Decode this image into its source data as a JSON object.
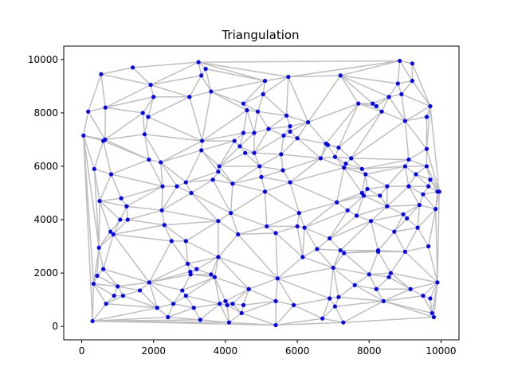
{
  "chart_data": {
    "type": "scatter",
    "title": "Triangulation",
    "xlabel": "",
    "ylabel": "",
    "xlim": [
      -500,
      10500
    ],
    "ylim": [
      -500,
      10500
    ],
    "xticks": [
      0,
      2000,
      4000,
      6000,
      8000,
      10000
    ],
    "yticks": [
      0,
      2000,
      4000,
      6000,
      8000,
      10000
    ],
    "grid": false,
    "legend": "none",
    "colors": {
      "points": "#0000ff",
      "edges": "#bfbfbf",
      "axes": "#000000"
    },
    "series": [
      {
        "marker": "point",
        "points": [
          [
            50,
            7150
          ],
          [
            180,
            8050
          ],
          [
            300,
            200
          ],
          [
            330,
            1600
          ],
          [
            350,
            5900
          ],
          [
            430,
            1900
          ],
          [
            480,
            2950
          ],
          [
            500,
            4700
          ],
          [
            540,
            9450
          ],
          [
            600,
            2150
          ],
          [
            600,
            6950
          ],
          [
            650,
            7000
          ],
          [
            660,
            8200
          ],
          [
            680,
            850
          ],
          [
            800,
            3550
          ],
          [
            820,
            5700
          ],
          [
            880,
            3450
          ],
          [
            900,
            1150
          ],
          [
            1000,
            1500
          ],
          [
            1070,
            4000
          ],
          [
            1100,
            4800
          ],
          [
            1150,
            1150
          ],
          [
            1250,
            4500
          ],
          [
            1280,
            4000
          ],
          [
            1420,
            9700
          ],
          [
            1620,
            1350
          ],
          [
            1700,
            8000
          ],
          [
            1750,
            7200
          ],
          [
            1850,
            7850
          ],
          [
            1880,
            1650
          ],
          [
            1870,
            6250
          ],
          [
            1920,
            9050
          ],
          [
            2000,
            8600
          ],
          [
            2100,
            700
          ],
          [
            2200,
            6150
          ],
          [
            2230,
            4350
          ],
          [
            2250,
            5250
          ],
          [
            2300,
            3800
          ],
          [
            2400,
            350
          ],
          [
            2500,
            3200
          ],
          [
            2550,
            850
          ],
          [
            2650,
            5250
          ],
          [
            2800,
            1350
          ],
          [
            2900,
            3200
          ],
          [
            2900,
            1150
          ],
          [
            2900,
            5400
          ],
          [
            2950,
            2350
          ],
          [
            3000,
            8600
          ],
          [
            3020,
            2050
          ],
          [
            3030,
            1950
          ],
          [
            3050,
            5000
          ],
          [
            3120,
            700
          ],
          [
            3200,
            2150
          ],
          [
            3250,
            9900
          ],
          [
            3300,
            250
          ],
          [
            3330,
            6600
          ],
          [
            3330,
            9400
          ],
          [
            3350,
            6950
          ],
          [
            3450,
            9650
          ],
          [
            3600,
            8800
          ],
          [
            3600,
            1950
          ],
          [
            3650,
            5500
          ],
          [
            3700,
            1850
          ],
          [
            3800,
            2600
          ],
          [
            3800,
            3950
          ],
          [
            3800,
            5800
          ],
          [
            3830,
            6000
          ],
          [
            3840,
            850
          ],
          [
            4000,
            950
          ],
          [
            4050,
            800
          ],
          [
            4100,
            150
          ],
          [
            4150,
            4250
          ],
          [
            4200,
            5350
          ],
          [
            4200,
            850
          ],
          [
            4250,
            6950
          ],
          [
            4350,
            3450
          ],
          [
            4400,
            6750
          ],
          [
            4450,
            500
          ],
          [
            4500,
            800
          ],
          [
            4550,
            6500
          ],
          [
            4500,
            8350
          ],
          [
            4500,
            7250
          ],
          [
            4600,
            8100
          ],
          [
            4650,
            1400
          ],
          [
            4800,
            7250
          ],
          [
            4800,
            6500
          ],
          [
            4900,
            8050
          ],
          [
            4950,
            6000
          ],
          [
            5000,
            5600
          ],
          [
            5050,
            8700
          ],
          [
            5100,
            9200
          ],
          [
            5100,
            5050
          ],
          [
            5150,
            3750
          ],
          [
            5200,
            7400
          ],
          [
            5400,
            3500
          ],
          [
            5400,
            950
          ],
          [
            5400,
            50
          ],
          [
            5450,
            1800
          ],
          [
            5550,
            6450
          ],
          [
            5600,
            5850
          ],
          [
            5620,
            7150
          ],
          [
            5700,
            7900
          ],
          [
            5750,
            9350
          ],
          [
            5800,
            7500
          ],
          [
            5800,
            7300
          ],
          [
            5800,
            5400
          ],
          [
            5900,
            800
          ],
          [
            6000,
            7050
          ],
          [
            6000,
            3750
          ],
          [
            6050,
            4250
          ],
          [
            6150,
            2600
          ],
          [
            6200,
            3700
          ],
          [
            6300,
            7650
          ],
          [
            6550,
            2900
          ],
          [
            6650,
            6300
          ],
          [
            6700,
            300
          ],
          [
            6800,
            6850
          ],
          [
            6850,
            6800
          ],
          [
            6900,
            3300
          ],
          [
            6900,
            1050
          ],
          [
            7000,
            2200
          ],
          [
            7050,
            6350
          ],
          [
            7050,
            750
          ],
          [
            7100,
            4650
          ],
          [
            7150,
            1100
          ],
          [
            7150,
            6700
          ],
          [
            7200,
            2850
          ],
          [
            7280,
            150
          ],
          [
            7300,
            2750
          ],
          [
            7300,
            5950
          ],
          [
            7350,
            6100
          ],
          [
            7400,
            4350
          ],
          [
            7500,
            6300
          ],
          [
            7600,
            1550
          ],
          [
            7650,
            4150
          ],
          [
            7700,
            8350
          ],
          [
            7800,
            5900
          ],
          [
            7800,
            5000
          ],
          [
            7850,
            4900
          ],
          [
            7900,
            5700
          ],
          [
            7950,
            5150
          ],
          [
            8000,
            1950
          ],
          [
            8050,
            3950
          ],
          [
            8100,
            8350
          ],
          [
            8200,
            8250
          ],
          [
            8200,
            1400
          ],
          [
            8250,
            2800
          ],
          [
            8250,
            2850
          ],
          [
            8300,
            4900
          ],
          [
            8350,
            8050
          ],
          [
            8400,
            950
          ],
          [
            8500,
            4500
          ],
          [
            8500,
            5250
          ],
          [
            8550,
            8600
          ],
          [
            8550,
            1850
          ],
          [
            8600,
            2000
          ],
          [
            8700,
            3550
          ],
          [
            8800,
            9100
          ],
          [
            8850,
            9950
          ],
          [
            8900,
            8700
          ],
          [
            9000,
            6000
          ],
          [
            9000,
            2800
          ],
          [
            9000,
            7700
          ],
          [
            9050,
            4050
          ],
          [
            9100,
            6250
          ],
          [
            9150,
            1400
          ],
          [
            9200,
            9850
          ],
          [
            9200,
            9200
          ],
          [
            9300,
            5700
          ],
          [
            9400,
            4550
          ],
          [
            9500,
            1150
          ],
          [
            9600,
            6000
          ],
          [
            9600,
            7850
          ],
          [
            9650,
            5250
          ],
          [
            9650,
            3000
          ],
          [
            9700,
            1050
          ],
          [
            9700,
            8250
          ],
          [
            9700,
            5500
          ],
          [
            9750,
            500
          ],
          [
            9800,
            350
          ],
          [
            9850,
            4400
          ],
          [
            9900,
            1650
          ],
          [
            9900,
            5050
          ],
          [
            9950,
            5050
          ],
          [
            9600,
            6650
          ],
          [
            9500,
            4950
          ],
          [
            9350,
            3700
          ],
          [
            9100,
            5250
          ],
          [
            8950,
            4200
          ],
          [
            7200,
            9400
          ]
        ]
      }
    ]
  }
}
